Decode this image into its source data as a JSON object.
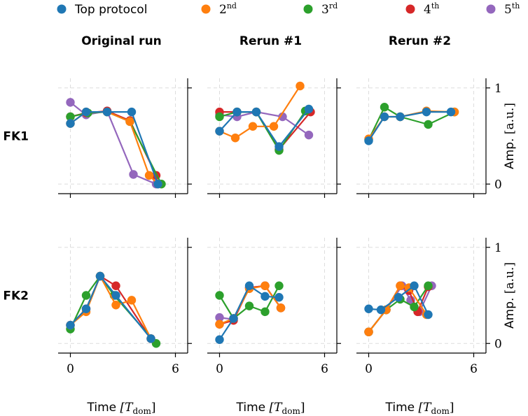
{
  "legend": [
    {
      "label": "Top protocol",
      "color": "#1f77b4"
    },
    {
      "label": "2",
      "sup": "nd",
      "color": "#ff7f0e"
    },
    {
      "label": "3",
      "sup": "rd",
      "color": "#2ca02c"
    },
    {
      "label": "4",
      "sup": "th",
      "color": "#d62728"
    },
    {
      "label": "5",
      "sup": "th",
      "color": "#9467bd"
    }
  ],
  "columns": [
    "Original run",
    "Rerun #1",
    "Rerun #2"
  ],
  "rows": [
    "FK1",
    "FK2"
  ],
  "xlabel": "Time",
  "xlabel_unit": "[T",
  "xlabel_unit_sub": "dom",
  "xlabel_unit_close": "]",
  "ylabel": "Amp.",
  "ylabel_unit": "[a.u.]",
  "xticks": [
    0,
    6
  ],
  "yticks": [
    0,
    1
  ],
  "xlim": [
    -0.7,
    6.7
  ],
  "ylim": [
    -0.1,
    1.1
  ],
  "chart_data": [
    {
      "type": "line",
      "row": "FK1",
      "column": "Original run",
      "xlabel": "Time [T_dom]",
      "ylabel": "Amp. [a.u.]",
      "series": [
        {
          "name": "5th",
          "x": [
            0,
            0.9,
            2.1,
            3.6,
            4.9
          ],
          "y": [
            0.85,
            0.72,
            0.76,
            0.1,
            0.0
          ]
        },
        {
          "name": "4th",
          "x": [
            0,
            0.9,
            2.1,
            3.4,
            4.9
          ],
          "y": [
            0.7,
            0.74,
            0.76,
            0.66,
            0.09
          ]
        },
        {
          "name": "3rd",
          "x": [
            0,
            1.0,
            2.1,
            3.4,
            5.2
          ],
          "y": [
            0.7,
            0.74,
            0.75,
            0.65,
            0.0
          ]
        },
        {
          "name": "2nd",
          "x": [
            0,
            0.9,
            2.1,
            3.4,
            4.5,
            5.0
          ],
          "y": [
            0.63,
            0.75,
            0.75,
            0.65,
            0.09,
            0.0
          ]
        },
        {
          "name": "Top protocol",
          "x": [
            0,
            0.9,
            2.1,
            3.5,
            5.0
          ],
          "y": [
            0.63,
            0.75,
            0.75,
            0.75,
            0.0
          ]
        }
      ]
    },
    {
      "type": "line",
      "row": "FK1",
      "column": "Rerun #1",
      "xlabel": "Time [T_dom]",
      "ylabel": "Amp. [a.u.]",
      "series": [
        {
          "name": "5th",
          "x": [
            0,
            1.0,
            2.1,
            3.6,
            5.1
          ],
          "y": [
            0.72,
            0.7,
            0.75,
            0.7,
            0.51
          ]
        },
        {
          "name": "4th",
          "x": [
            0,
            1.0,
            2.1,
            3.4,
            5.2
          ],
          "y": [
            0.75,
            0.75,
            0.75,
            0.36,
            0.75
          ]
        },
        {
          "name": "3rd",
          "x": [
            0,
            1.0,
            2.1,
            3.4,
            4.9
          ],
          "y": [
            0.7,
            0.75,
            0.75,
            0.35,
            0.76
          ]
        },
        {
          "name": "2nd",
          "x": [
            0,
            0.9,
            1.9,
            3.1,
            4.6
          ],
          "y": [
            0.55,
            0.48,
            0.6,
            0.6,
            1.02
          ]
        },
        {
          "name": "Top protocol",
          "x": [
            0,
            1.0,
            2.1,
            3.4,
            5.1
          ],
          "y": [
            0.55,
            0.75,
            0.75,
            0.39,
            0.78
          ]
        }
      ]
    },
    {
      "type": "line",
      "row": "FK1",
      "column": "Rerun #2",
      "xlabel": "Time [T_dom]",
      "ylabel": "Amp. [a.u.]",
      "series": [
        {
          "name": "3rd",
          "x": [
            0,
            0.9,
            1.8,
            3.4,
            4.9
          ],
          "y": [
            0.46,
            0.8,
            0.7,
            0.62,
            0.75
          ]
        },
        {
          "name": "2nd",
          "x": [
            0,
            0.9,
            1.8,
            3.3,
            4.9
          ],
          "y": [
            0.47,
            0.7,
            0.7,
            0.76,
            0.75
          ]
        },
        {
          "name": "Top protocol",
          "x": [
            0,
            0.9,
            1.8,
            3.3,
            4.7
          ],
          "y": [
            0.45,
            0.7,
            0.7,
            0.75,
            0.75
          ]
        }
      ]
    },
    {
      "type": "line",
      "row": "FK2",
      "column": "Original run",
      "xlabel": "Time [T_dom]",
      "ylabel": "Amp. [a.u.]",
      "series": [
        {
          "name": "4th",
          "x": [
            0,
            0.9,
            1.7,
            2.6,
            4.6
          ],
          "y": [
            0.19,
            0.36,
            0.7,
            0.6,
            0.05
          ]
        },
        {
          "name": "3rd",
          "x": [
            0,
            0.9,
            1.7,
            2.5,
            4.9
          ],
          "y": [
            0.15,
            0.5,
            0.7,
            0.5,
            0.0
          ]
        },
        {
          "name": "2nd",
          "x": [
            0,
            0.9,
            1.7,
            2.6,
            3.5,
            4.6
          ],
          "y": [
            0.19,
            0.33,
            0.7,
            0.4,
            0.45,
            0.05
          ]
        },
        {
          "name": "Top protocol",
          "x": [
            0,
            0.9,
            1.7,
            2.6,
            4.6
          ],
          "y": [
            0.19,
            0.36,
            0.7,
            0.5,
            0.05
          ]
        }
      ]
    },
    {
      "type": "line",
      "row": "FK2",
      "column": "Rerun #1",
      "xlabel": "Time [T_dom]",
      "ylabel": "Amp. [a.u.]",
      "series": [
        {
          "name": "5th",
          "x": [
            0,
            0.8,
            1.7,
            2.6,
            3.5
          ],
          "y": [
            0.27,
            0.25,
            0.58,
            0.6,
            0.37
          ]
        },
        {
          "name": "4th",
          "x": [
            0,
            0.8,
            1.7,
            2.6,
            3.5
          ],
          "y": [
            0.2,
            0.24,
            0.58,
            0.6,
            0.37
          ]
        },
        {
          "name": "3rd",
          "x": [
            0,
            0.8,
            1.7,
            2.6,
            3.4
          ],
          "y": [
            0.5,
            0.26,
            0.39,
            0.33,
            0.6
          ]
        },
        {
          "name": "2nd",
          "x": [
            0,
            0.8,
            1.7,
            2.6,
            3.5
          ],
          "y": [
            0.2,
            0.26,
            0.57,
            0.6,
            0.37
          ]
        },
        {
          "name": "Top protocol",
          "x": [
            0,
            0.8,
            1.7,
            2.6,
            3.4
          ],
          "y": [
            0.04,
            0.26,
            0.6,
            0.49,
            0.48
          ]
        }
      ]
    },
    {
      "type": "line",
      "row": "FK2",
      "column": "Rerun #2",
      "xlabel": "Time [T_dom]",
      "ylabel": "Amp. [a.u.]",
      "series": [
        {
          "name": "5th",
          "x": [
            0,
            1.0,
            1.9,
            2.4,
            2.9,
            3.6
          ],
          "y": [
            0.12,
            0.35,
            0.6,
            0.45,
            0.33,
            0.6
          ]
        },
        {
          "name": "4th",
          "x": [
            0,
            1.0,
            1.8,
            2.3,
            2.8,
            3.4
          ],
          "y": [
            0.12,
            0.35,
            0.6,
            0.55,
            0.33,
            0.59
          ]
        },
        {
          "name": "3rd",
          "x": [
            0,
            1.0,
            1.8,
            2.6,
            3.4
          ],
          "y": [
            0.12,
            0.35,
            0.46,
            0.38,
            0.6
          ]
        },
        {
          "name": "2nd",
          "x": [
            0,
            1.0,
            1.8,
            2.3,
            3.3
          ],
          "y": [
            0.12,
            0.35,
            0.6,
            0.58,
            0.3
          ]
        },
        {
          "name": "Top protocol",
          "x": [
            0,
            0.7,
            1.7,
            2.6,
            3.4
          ],
          "y": [
            0.36,
            0.35,
            0.48,
            0.6,
            0.3
          ]
        }
      ]
    }
  ]
}
